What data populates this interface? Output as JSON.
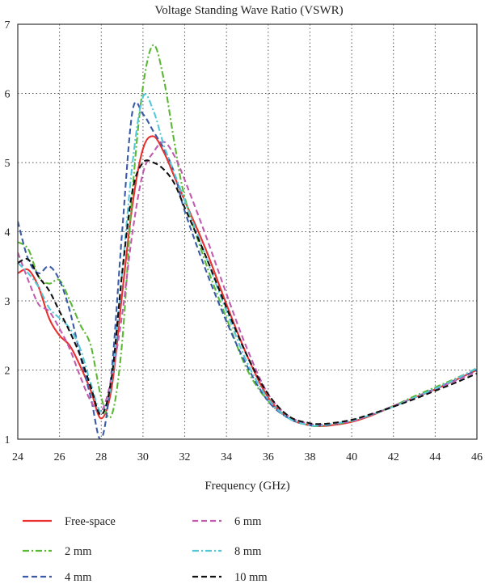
{
  "chart_data": {
    "type": "line",
    "title": "Voltage Standing Wave Ratio (VSWR)",
    "xlabel": "Frequency (GHz)",
    "ylabel": "",
    "xlim": [
      24,
      46
    ],
    "ylim": [
      1,
      7
    ],
    "xticks": [
      24,
      26,
      28,
      30,
      32,
      34,
      36,
      38,
      40,
      42,
      44,
      46
    ],
    "yticks": [
      1,
      2,
      3,
      4,
      5,
      6,
      7
    ],
    "grid": true,
    "legend_position": "bottom, two columns",
    "series": [
      {
        "name": "Free-space",
        "color": "#e8312e",
        "dash": "solid",
        "x": [
          24,
          24.5,
          25,
          25.5,
          26,
          26.5,
          27,
          27.5,
          28,
          28.5,
          29,
          29.5,
          30,
          30.5,
          31,
          31.5,
          32,
          33,
          34,
          35,
          36,
          37,
          38,
          38.5,
          39,
          40,
          41,
          42,
          43,
          44,
          45,
          46
        ],
        "y": [
          3.4,
          3.45,
          3.2,
          2.75,
          2.5,
          2.35,
          2.05,
          1.7,
          1.3,
          1.75,
          3.1,
          4.4,
          5.2,
          5.38,
          5.15,
          4.8,
          4.45,
          3.75,
          2.95,
          2.2,
          1.6,
          1.3,
          1.2,
          1.19,
          1.2,
          1.25,
          1.35,
          1.48,
          1.6,
          1.72,
          1.86,
          2.0
        ]
      },
      {
        "name": "2 mm",
        "color": "#5ab834",
        "dash": "dashdot",
        "x": [
          24,
          24.5,
          25,
          25.5,
          26,
          26.5,
          27,
          27.5,
          28,
          28.5,
          29,
          29.5,
          30,
          30.5,
          31,
          31.5,
          32,
          33,
          34,
          35,
          36,
          37,
          38,
          38.5,
          39,
          40,
          41,
          42,
          43,
          44,
          45,
          46
        ],
        "y": [
          3.85,
          3.75,
          3.35,
          3.25,
          3.3,
          3.0,
          2.65,
          2.35,
          1.6,
          1.35,
          2.4,
          4.6,
          6.1,
          6.7,
          6.2,
          5.3,
          4.5,
          3.55,
          2.75,
          2.0,
          1.55,
          1.3,
          1.2,
          1.19,
          1.21,
          1.26,
          1.36,
          1.48,
          1.62,
          1.75,
          1.88,
          2.02
        ]
      },
      {
        "name": "4 mm",
        "color": "#3a5aa8",
        "dash": "dashed",
        "x": [
          24,
          24.5,
          25,
          25.5,
          26,
          26.5,
          27,
          27.5,
          28,
          28.5,
          29,
          29.5,
          30,
          30.5,
          31,
          31.5,
          32,
          33,
          34,
          35,
          36,
          37,
          38,
          38.5,
          39,
          40,
          41,
          42,
          43,
          44,
          45,
          46
        ],
        "y": [
          4.15,
          3.6,
          3.4,
          3.5,
          3.3,
          2.85,
          2.2,
          1.6,
          1.0,
          2.0,
          4.0,
          5.75,
          5.7,
          5.45,
          5.2,
          4.85,
          4.3,
          3.45,
          2.7,
          2.05,
          1.55,
          1.3,
          1.2,
          1.2,
          1.21,
          1.27,
          1.36,
          1.47,
          1.6,
          1.73,
          1.86,
          2.0
        ]
      },
      {
        "name": "6 mm",
        "color": "#c05bb0",
        "dash": "dashed",
        "x": [
          24,
          24.5,
          25,
          25.5,
          26,
          26.5,
          27,
          27.5,
          28,
          28.5,
          29,
          29.5,
          30,
          30.5,
          31,
          31.5,
          32,
          33,
          34,
          35,
          36,
          37,
          38,
          38.5,
          39,
          40,
          41,
          42,
          43,
          44,
          45,
          46
        ],
        "y": [
          3.7,
          3.3,
          2.95,
          2.85,
          2.6,
          2.3,
          1.9,
          1.55,
          1.4,
          1.9,
          2.8,
          4.0,
          4.85,
          5.15,
          5.3,
          5.1,
          4.75,
          3.95,
          3.1,
          2.3,
          1.65,
          1.33,
          1.22,
          1.21,
          1.22,
          1.26,
          1.36,
          1.48,
          1.6,
          1.72,
          1.85,
          1.98
        ]
      },
      {
        "name": "8 mm",
        "color": "#55c8d8",
        "dash": "dashdot",
        "x": [
          24,
          24.5,
          25,
          25.5,
          26,
          26.5,
          27,
          27.5,
          28,
          28.5,
          29,
          29.5,
          30,
          30.5,
          31,
          31.5,
          32,
          33,
          34,
          35,
          36,
          37,
          38,
          38.5,
          39,
          40,
          41,
          42,
          43,
          44,
          45,
          46
        ],
        "y": [
          3.55,
          3.4,
          3.2,
          2.9,
          2.75,
          2.6,
          2.3,
          1.8,
          1.4,
          1.85,
          3.4,
          5.0,
          5.95,
          5.75,
          5.25,
          4.85,
          4.45,
          3.65,
          2.85,
          2.1,
          1.58,
          1.3,
          1.2,
          1.2,
          1.22,
          1.27,
          1.36,
          1.47,
          1.6,
          1.73,
          1.87,
          2.03
        ]
      },
      {
        "name": "10 mm",
        "color": "#111111",
        "dash": "dashed",
        "x": [
          24,
          24.5,
          25,
          25.5,
          26,
          26.5,
          27,
          27.5,
          28,
          28.5,
          29,
          29.5,
          30,
          30.5,
          31,
          31.5,
          32,
          33,
          34,
          35,
          36,
          37,
          38,
          38.5,
          39,
          40,
          41,
          42,
          43,
          44,
          45,
          46
        ],
        "y": [
          3.55,
          3.6,
          3.35,
          3.15,
          2.85,
          2.55,
          2.2,
          1.75,
          1.35,
          1.9,
          3.4,
          4.6,
          5.0,
          5.0,
          4.9,
          4.7,
          4.35,
          3.65,
          2.9,
          2.2,
          1.65,
          1.33,
          1.23,
          1.22,
          1.23,
          1.28,
          1.37,
          1.47,
          1.58,
          1.7,
          1.82,
          1.95
        ]
      }
    ]
  }
}
